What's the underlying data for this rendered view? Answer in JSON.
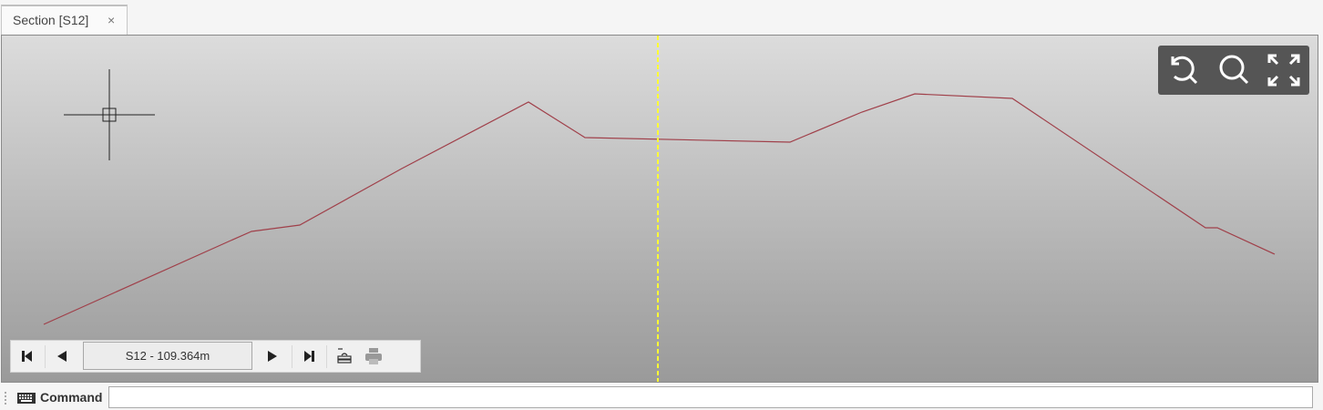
{
  "tab": {
    "title": "Section [S12]",
    "close_label": "×"
  },
  "viewport": {
    "profile_color": "#a0404a",
    "cursor_line_color": "#ffff33",
    "view_controls": [
      {
        "icon": "zoom-reset-icon"
      },
      {
        "icon": "zoom-icon"
      },
      {
        "icon": "fit-extents-icon"
      }
    ]
  },
  "navigation": {
    "first_icon": "skip-first-icon",
    "prev_icon": "previous-icon",
    "section_value": "S12 - 109.364m",
    "next_icon": "next-icon",
    "last_icon": "skip-last-icon",
    "layers_icon": "layers-icon",
    "print_icon": "print-icon"
  },
  "command": {
    "label": "Command",
    "value": "",
    "icon": "keyboard-icon"
  }
}
